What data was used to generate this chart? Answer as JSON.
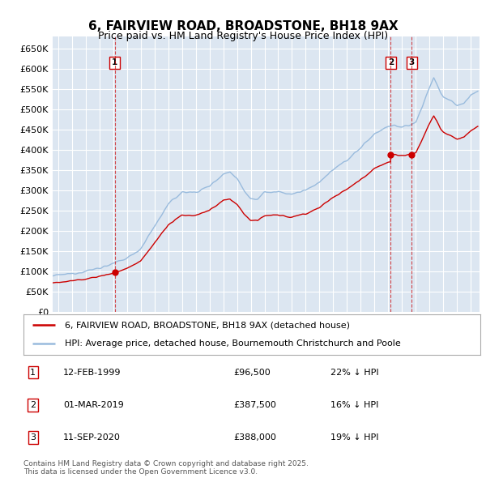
{
  "title": "6, FAIRVIEW ROAD, BROADSTONE, BH18 9AX",
  "subtitle": "Price paid vs. HM Land Registry's House Price Index (HPI)",
  "ylim": [
    0,
    680000
  ],
  "yticks": [
    0,
    50000,
    100000,
    150000,
    200000,
    250000,
    300000,
    350000,
    400000,
    450000,
    500000,
    550000,
    600000,
    650000
  ],
  "ytick_labels": [
    "£0",
    "£50K",
    "£100K",
    "£150K",
    "£200K",
    "£250K",
    "£300K",
    "£350K",
    "£400K",
    "£450K",
    "£500K",
    "£550K",
    "£600K",
    "£650K"
  ],
  "xlim_start": 1994.6,
  "xlim_end": 2025.6,
  "background_color": "#dce6f1",
  "grid_color": "#ffffff",
  "red_line_color": "#cc0000",
  "blue_line_color": "#99bbdd",
  "legend_line1": "6, FAIRVIEW ROAD, BROADSTONE, BH18 9AX (detached house)",
  "legend_line2": "HPI: Average price, detached house, Bournemouth Christchurch and Poole",
  "transactions": [
    {
      "num": 1,
      "date": "12-FEB-1999",
      "price": 96500,
      "pct": "22%",
      "year": 1999.12
    },
    {
      "num": 2,
      "date": "01-MAR-2019",
      "price": 387500,
      "pct": "16%",
      "year": 2019.17
    },
    {
      "num": 3,
      "date": "11-SEP-2020",
      "price": 388000,
      "pct": "19%",
      "year": 2020.7
    }
  ],
  "footer": "Contains HM Land Registry data © Crown copyright and database right 2025.\nThis data is licensed under the Open Government Licence v3.0."
}
